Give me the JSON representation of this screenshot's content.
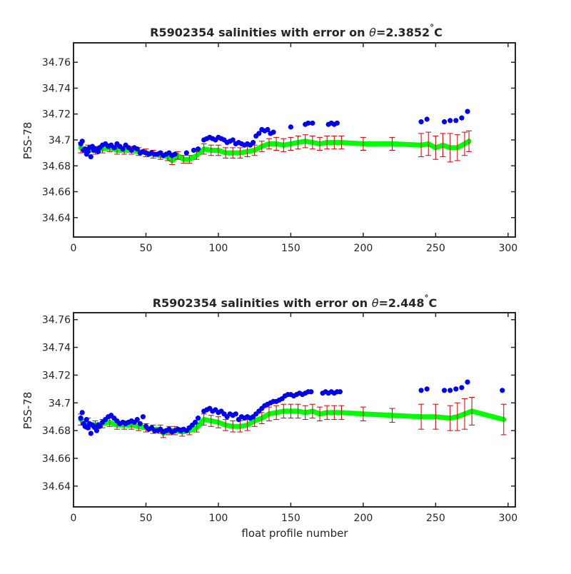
{
  "colors": {
    "profile": "#0000ee",
    "mapped_band": "#00ff00",
    "mapped_line": "#22bb22",
    "error_bars": "#cc0000",
    "axes": "#262626"
  },
  "chart_data": [
    {
      "type": "scatter",
      "title_main": "R5902354 salinities with error on ",
      "title_theta": "θ",
      "title_value": "=2.3852",
      "title_deg": "°",
      "title_unit": "C",
      "xlabel": "",
      "ylabel": "PSS-78",
      "xlim": [
        0,
        305
      ],
      "ylim": [
        34.625,
        34.775
      ],
      "xticks": [
        0,
        50,
        100,
        150,
        200,
        250,
        300
      ],
      "yticks": [
        34.64,
        34.66,
        34.68,
        34.7,
        34.72,
        34.74,
        34.76
      ],
      "ytick_labels": [
        "34.64",
        "34.66",
        "34.68",
        "34.7",
        "34.72",
        "34.74",
        "34.76"
      ],
      "xtick_labels": [
        "0",
        "50",
        "100",
        "150",
        "200",
        "250",
        "300"
      ],
      "grid": false,
      "series": [
        {
          "kind": "points",
          "x": [
            5,
            6,
            7,
            8,
            9,
            10,
            11,
            12,
            13,
            14,
            15,
            16,
            17,
            18,
            20,
            22,
            24,
            26,
            28,
            30,
            32,
            34,
            36,
            38,
            40,
            42,
            44,
            46,
            48,
            50,
            52,
            54,
            56,
            58,
            60,
            62,
            64,
            66,
            68,
            70,
            78,
            83,
            86,
            90,
            92,
            94,
            96,
            98,
            100,
            102,
            104,
            106,
            108,
            110,
            112,
            114,
            116,
            118,
            120,
            122,
            124,
            126,
            128,
            130,
            132,
            134,
            136,
            138,
            150,
            160,
            162,
            165,
            176,
            178,
            180,
            182,
            240,
            244,
            256,
            260,
            264,
            268,
            272
          ],
          "y": [
            34.697,
            34.699,
            34.692,
            34.693,
            34.689,
            34.691,
            34.694,
            34.687,
            34.695,
            34.692,
            34.693,
            34.692,
            34.691,
            34.694,
            34.696,
            34.697,
            34.695,
            34.696,
            34.694,
            34.697,
            34.695,
            34.693,
            34.696,
            34.694,
            34.692,
            34.694,
            34.693,
            34.69,
            34.691,
            34.69,
            34.689,
            34.69,
            34.689,
            34.689,
            34.69,
            34.688,
            34.689,
            34.69,
            34.688,
            34.689,
            34.69,
            34.692,
            34.693,
            34.7,
            34.701,
            34.702,
            34.701,
            34.7,
            34.702,
            34.701,
            34.7,
            34.698,
            34.699,
            34.7,
            34.697,
            34.698,
            34.697,
            34.696,
            34.697,
            34.696,
            34.698,
            34.703,
            34.705,
            34.708,
            34.707,
            34.708,
            34.705,
            34.706,
            34.71,
            34.712,
            34.713,
            34.713,
            34.712,
            34.713,
            34.712,
            34.713,
            34.714,
            34.716,
            34.714,
            34.715,
            34.715,
            34.717,
            34.722
          ]
        },
        {
          "kind": "mapped",
          "x": [
            5,
            10,
            15,
            20,
            25,
            30,
            35,
            40,
            45,
            50,
            55,
            60,
            65,
            68,
            72,
            76,
            80,
            85,
            90,
            95,
            100,
            105,
            110,
            115,
            120,
            125,
            130,
            135,
            140,
            145,
            150,
            155,
            160,
            165,
            170,
            175,
            180,
            185,
            200,
            220,
            240,
            245,
            250,
            255,
            260,
            265,
            270,
            273
          ],
          "y": [
            34.694,
            34.692,
            34.692,
            34.693,
            34.694,
            34.692,
            34.692,
            34.692,
            34.691,
            34.69,
            34.689,
            34.688,
            34.687,
            34.684,
            34.688,
            34.685,
            34.685,
            34.688,
            34.693,
            34.692,
            34.692,
            34.69,
            34.69,
            34.69,
            34.691,
            34.692,
            34.695,
            34.697,
            34.697,
            34.696,
            34.697,
            34.698,
            34.699,
            34.698,
            34.697,
            34.698,
            34.698,
            34.698,
            34.697,
            34.697,
            34.696,
            34.697,
            34.694,
            34.696,
            34.694,
            34.694,
            34.697,
            34.699
          ],
          "err": [
            0.004,
            0.004,
            0.003,
            0.003,
            0.003,
            0.003,
            0.003,
            0.003,
            0.003,
            0.003,
            0.003,
            0.003,
            0.003,
            0.003,
            0.003,
            0.003,
            0.003,
            0.003,
            0.004,
            0.004,
            0.004,
            0.004,
            0.004,
            0.004,
            0.004,
            0.004,
            0.004,
            0.004,
            0.005,
            0.005,
            0.005,
            0.005,
            0.005,
            0.005,
            0.005,
            0.005,
            0.005,
            0.005,
            0.005,
            0.005,
            0.009,
            0.009,
            0.009,
            0.009,
            0.011,
            0.01,
            0.009,
            0.008
          ]
        }
      ]
    },
    {
      "type": "scatter",
      "title_main": "R5902354 salinities with error on ",
      "title_theta": "θ",
      "title_value": "=2.448",
      "title_deg": "°",
      "title_unit": "C",
      "xlabel": "float profile number",
      "ylabel": "PSS-78",
      "xlim": [
        0,
        305
      ],
      "ylim": [
        34.625,
        34.765
      ],
      "xticks": [
        0,
        50,
        100,
        150,
        200,
        250,
        300
      ],
      "yticks": [
        34.64,
        34.66,
        34.68,
        34.7,
        34.72,
        34.74,
        34.76
      ],
      "ytick_labels": [
        "34.64",
        "34.66",
        "34.68",
        "34.7",
        "34.72",
        "34.74",
        "34.76"
      ],
      "xtick_labels": [
        "0",
        "50",
        "100",
        "150",
        "200",
        "250",
        "300"
      ],
      "grid": false,
      "series": [
        {
          "kind": "points",
          "x": [
            5,
            6,
            7,
            8,
            9,
            10,
            11,
            12,
            13,
            14,
            15,
            16,
            17,
            18,
            20,
            22,
            24,
            26,
            28,
            30,
            32,
            34,
            36,
            38,
            40,
            42,
            44,
            46,
            48,
            50,
            52,
            54,
            56,
            58,
            60,
            62,
            64,
            66,
            68,
            70,
            72,
            74,
            76,
            78,
            80,
            82,
            84,
            86,
            90,
            92,
            94,
            96,
            98,
            100,
            102,
            104,
            106,
            108,
            110,
            112,
            114,
            116,
            118,
            120,
            122,
            124,
            126,
            128,
            130,
            132,
            134,
            136,
            138,
            140,
            142,
            144,
            146,
            148,
            150,
            152,
            154,
            156,
            158,
            160,
            162,
            164,
            172,
            174,
            176,
            178,
            180,
            182,
            184,
            240,
            244,
            256,
            260,
            264,
            268,
            272,
            296
          ],
          "y": [
            34.689,
            34.693,
            34.685,
            34.683,
            34.688,
            34.682,
            34.685,
            34.678,
            34.684,
            34.683,
            34.682,
            34.68,
            34.684,
            34.683,
            34.686,
            34.688,
            34.69,
            34.691,
            34.689,
            34.687,
            34.685,
            34.686,
            34.685,
            34.686,
            34.687,
            34.686,
            34.688,
            34.685,
            34.69,
            34.683,
            34.681,
            34.682,
            34.68,
            34.68,
            34.681,
            34.679,
            34.68,
            34.681,
            34.679,
            34.68,
            34.681,
            34.68,
            34.681,
            34.68,
            34.682,
            34.684,
            34.686,
            34.689,
            34.694,
            34.695,
            34.696,
            34.694,
            34.695,
            34.693,
            34.694,
            34.692,
            34.69,
            34.692,
            34.691,
            34.692,
            34.688,
            34.69,
            34.689,
            34.69,
            34.689,
            34.69,
            34.692,
            34.694,
            34.696,
            34.698,
            34.699,
            34.7,
            34.701,
            34.701,
            34.702,
            34.703,
            34.705,
            34.706,
            34.706,
            34.705,
            34.706,
            34.707,
            34.706,
            34.707,
            34.708,
            34.708,
            34.707,
            34.708,
            34.707,
            34.708,
            34.707,
            34.708,
            34.708,
            34.709,
            34.71,
            34.709,
            34.709,
            34.71,
            34.711,
            34.715,
            34.709
          ]
        },
        {
          "kind": "mapped",
          "x": [
            5,
            10,
            15,
            20,
            25,
            30,
            35,
            40,
            45,
            50,
            55,
            60,
            62,
            66,
            70,
            75,
            80,
            85,
            90,
            95,
            100,
            105,
            110,
            115,
            120,
            125,
            130,
            135,
            140,
            145,
            150,
            155,
            160,
            165,
            170,
            175,
            180,
            185,
            200,
            220,
            240,
            250,
            260,
            265,
            270,
            275,
            297
          ],
          "y": [
            34.688,
            34.685,
            34.684,
            34.685,
            34.686,
            34.684,
            34.684,
            34.684,
            34.683,
            34.682,
            34.681,
            34.681,
            34.678,
            34.68,
            34.68,
            34.679,
            34.68,
            34.682,
            34.688,
            34.687,
            34.686,
            34.684,
            34.683,
            34.683,
            34.684,
            34.687,
            34.689,
            34.692,
            34.693,
            34.694,
            34.694,
            34.694,
            34.693,
            34.694,
            34.692,
            34.693,
            34.693,
            34.693,
            34.692,
            34.691,
            34.69,
            34.69,
            34.689,
            34.69,
            34.692,
            34.694,
            34.688
          ],
          "err": [
            0.004,
            0.004,
            0.003,
            0.003,
            0.003,
            0.003,
            0.003,
            0.003,
            0.003,
            0.003,
            0.003,
            0.003,
            0.003,
            0.003,
            0.003,
            0.003,
            0.003,
            0.003,
            0.004,
            0.004,
            0.004,
            0.004,
            0.004,
            0.004,
            0.004,
            0.004,
            0.004,
            0.005,
            0.005,
            0.005,
            0.005,
            0.005,
            0.005,
            0.005,
            0.005,
            0.005,
            0.005,
            0.005,
            0.005,
            0.005,
            0.009,
            0.009,
            0.009,
            0.01,
            0.011,
            0.01,
            0.011
          ]
        }
      ]
    }
  ]
}
